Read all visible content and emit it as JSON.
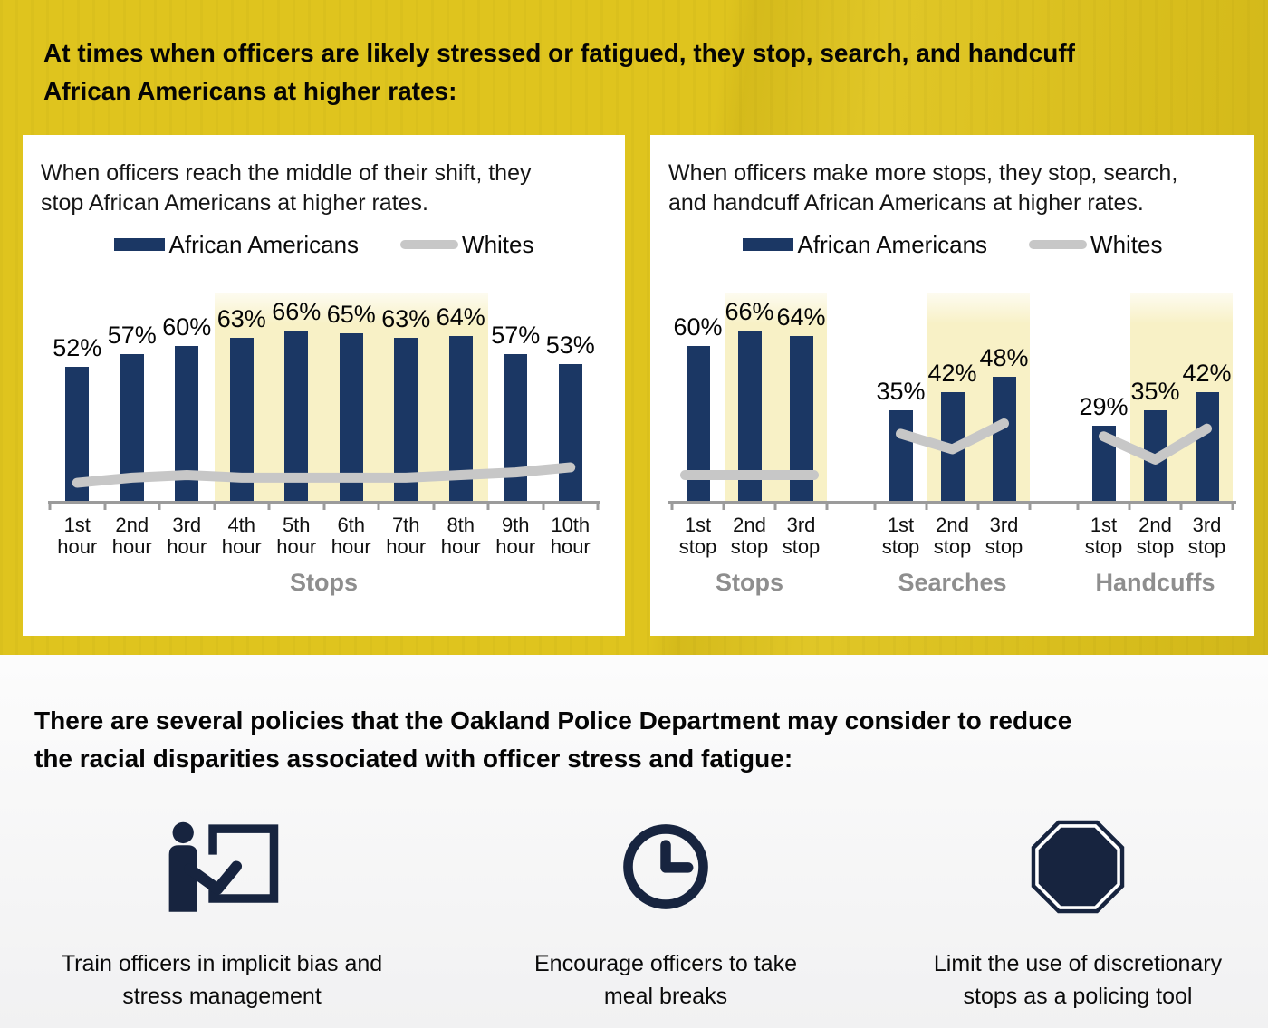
{
  "headline": "At times when officers are likely stressed or fatigued, they stop, search, and handcuff\nAfrican Americans at higher rates:",
  "colors": {
    "yellow": "#dfc41e",
    "navy": "#1b3764",
    "icon_navy": "#17243f",
    "whites_gray": "#c7c7c7",
    "highlight": "#f8f1c6",
    "axis_gray": "#9b9b9b",
    "group_label_gray": "#8e8e8e"
  },
  "chart_data": [
    {
      "type": "bar",
      "title": "When officers reach the middle of their shift, they\nstop African Americans at higher rates.",
      "series_names": [
        "African Americans",
        "Whites"
      ],
      "categories": [
        "1st hour",
        "2nd hour",
        "3rd hour",
        "4th hour",
        "5th hour",
        "6th hour",
        "7th hour",
        "8th hour",
        "9th hour",
        "10th hour"
      ],
      "series": [
        {
          "name": "African Americans",
          "type": "bar",
          "unit": "%",
          "values": [
            52,
            57,
            60,
            63,
            66,
            65,
            63,
            64,
            57,
            53
          ]
        },
        {
          "name": "Whites",
          "type": "line",
          "unit": "%",
          "estimated_from_pixels": true,
          "values": [
            7,
            9,
            10,
            9,
            9,
            9,
            9,
            10,
            11,
            13
          ]
        }
      ],
      "highlighted_categories": [
        "4th hour",
        "5th hour",
        "6th hour",
        "7th hour",
        "8th hour"
      ],
      "xlabel": "Stops",
      "ylim": [
        0,
        70
      ],
      "grid": false,
      "legend_position": "top",
      "data_labels": "African Americans bars only"
    },
    {
      "type": "bar",
      "title": "When officers make more stops, they stop, search,\nand handcuff African Americans at higher rates.",
      "series_names": [
        "African Americans",
        "Whites"
      ],
      "groups": [
        {
          "label": "Stops",
          "categories": [
            "1st stop",
            "2nd stop",
            "3rd stop"
          ],
          "african_americans": [
            60,
            66,
            64
          ],
          "whites_estimated": [
            10,
            10,
            10
          ],
          "highlighted_categories": [
            "2nd stop",
            "3rd stop"
          ]
        },
        {
          "label": "Searches",
          "categories": [
            "1st stop",
            "2nd stop",
            "3rd stop"
          ],
          "african_americans": [
            35,
            42,
            48
          ],
          "whites_estimated": [
            26,
            20,
            30
          ],
          "highlighted_categories": [
            "2nd stop",
            "3rd stop"
          ]
        },
        {
          "label": "Handcuffs",
          "categories": [
            "1st stop",
            "2nd stop",
            "3rd stop"
          ],
          "african_americans": [
            29,
            35,
            42
          ],
          "whites_estimated": [
            25,
            16,
            28
          ],
          "highlighted_categories": [
            "2nd stop",
            "3rd stop"
          ]
        }
      ],
      "ylim": [
        0,
        70
      ],
      "grid": false,
      "legend_position": "top",
      "data_labels": "African Americans bars only"
    }
  ],
  "policies": {
    "heading": "There are several policies that the Oakland Police Department may consider to reduce\nthe racial disparities associated with officer stress and fatigue:",
    "items": [
      {
        "icon": "presentation-training-icon",
        "label": "Train officers in implicit bias and\nstress management"
      },
      {
        "icon": "clock-icon",
        "label": "Encourage officers to take\nmeal breaks"
      },
      {
        "icon": "stop-sign-icon",
        "label": "Limit the use of discretionary\nstops as a policing tool"
      }
    ]
  }
}
